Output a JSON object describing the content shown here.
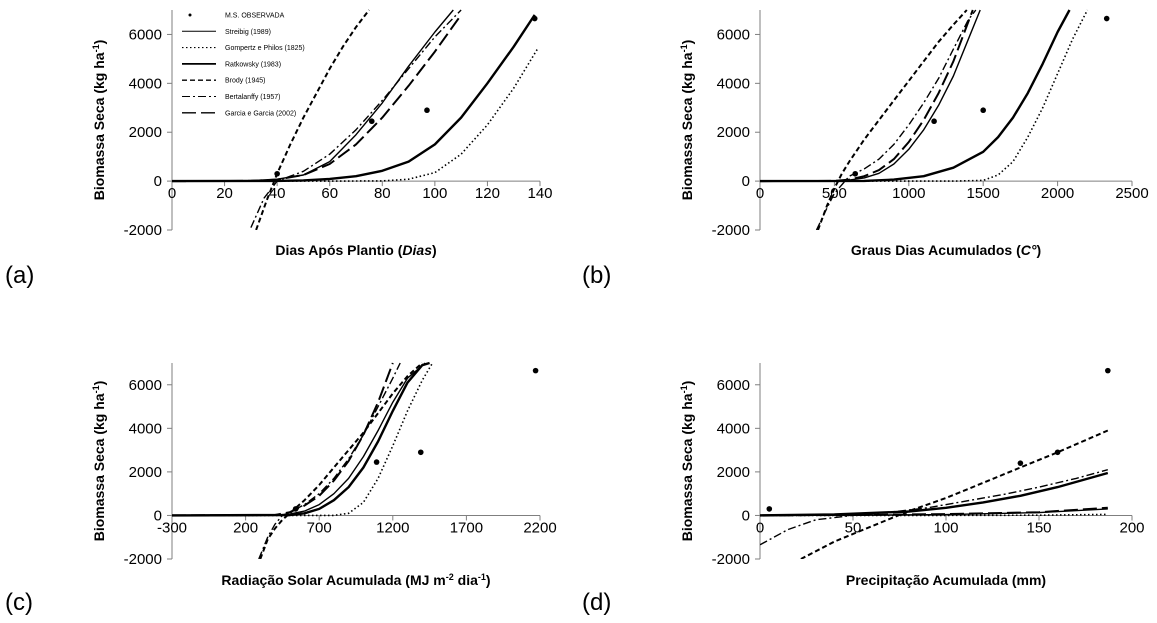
{
  "legend": {
    "position": "top-left inside panel a",
    "entries": [
      {
        "label": "M.S. OBSERVADA",
        "style": "dot"
      },
      {
        "label": "Streibig (1989)",
        "style": "thin-solid"
      },
      {
        "label": "Gompertz e Philos (1825)",
        "style": "dotted"
      },
      {
        "label": "Ratkowsky (1983)",
        "style": "thick-solid"
      },
      {
        "label": "Brody (1945)",
        "style": "short-dash"
      },
      {
        "label": "Bertalanffy (1957)",
        "style": "dash-dot"
      },
      {
        "label": "Garcia e Garcia (2002)",
        "style": "long-dash"
      }
    ]
  },
  "chart_data": [
    {
      "panel_label": "(a)",
      "type": "line",
      "ylabel_main": "Biomassa Seca (kg ha",
      "ylabel_sup": "-1",
      "ylabel_end": ")",
      "xlabel_parts": [
        {
          "text": "Dias Após Plantio (",
          "italic": false
        },
        {
          "text": "Dias",
          "italic": true
        },
        {
          "text": ")",
          "italic": false
        }
      ],
      "xlim": [
        0,
        140
      ],
      "ylim": [
        -2000,
        7000
      ],
      "xticks": [
        0,
        20,
        40,
        60,
        80,
        100,
        120,
        140
      ],
      "yticks": [
        -2000,
        0,
        2000,
        4000,
        6000
      ],
      "grid": false,
      "observed": [
        {
          "x": 40,
          "y": 300
        },
        {
          "x": 76,
          "y": 2450
        },
        {
          "x": 97,
          "y": 2900
        },
        {
          "x": 138,
          "y": 6650
        }
      ],
      "series": [
        {
          "name": "Streibig (1989)",
          "style": "thin-solid",
          "x": [
            0,
            20,
            30,
            40,
            50,
            60,
            70,
            80,
            90,
            100,
            107
          ],
          "y": [
            0,
            5,
            20,
            80,
            250,
            800,
            1900,
            3200,
            4700,
            6100,
            7000
          ]
        },
        {
          "name": "Gompertz e Philos (1825)",
          "style": "dotted",
          "x": [
            0,
            60,
            80,
            90,
            100,
            110,
            120,
            130,
            139
          ],
          "y": [
            0,
            0,
            10,
            80,
            350,
            1100,
            2300,
            3800,
            5400
          ]
        },
        {
          "name": "Ratkowsky (1983)",
          "style": "thick-solid",
          "x": [
            0,
            40,
            50,
            60,
            70,
            80,
            90,
            100,
            110,
            120,
            130,
            138
          ],
          "y": [
            0,
            10,
            30,
            90,
            200,
            420,
            800,
            1500,
            2600,
            4000,
            5500,
            6800
          ]
        },
        {
          "name": "Brody (1945)",
          "style": "short-dash",
          "x": [
            32,
            36,
            40,
            45,
            50,
            55,
            60,
            65,
            70,
            75
          ],
          "y": [
            -2000,
            -800,
            300,
            1500,
            2600,
            3600,
            4600,
            5500,
            6300,
            7000
          ]
        },
        {
          "name": "Bertalanffy (1957)",
          "style": "dash-dot",
          "x": [
            30,
            35,
            40,
            45,
            50,
            60,
            70,
            80,
            90,
            100,
            110
          ],
          "y": [
            -1900,
            -700,
            0,
            200,
            400,
            1100,
            2100,
            3300,
            4600,
            5900,
            7000
          ]
        },
        {
          "name": "Garcia e Garcia (2002)",
          "style": "long-dash",
          "x": [
            0,
            30,
            40,
            50,
            60,
            70,
            80,
            90,
            100,
            110
          ],
          "y": [
            0,
            10,
            60,
            250,
            700,
            1500,
            2600,
            3900,
            5300,
            6800
          ]
        }
      ]
    },
    {
      "panel_label": "(b)",
      "type": "line",
      "ylabel_main": "Biomassa Seca (kg ha",
      "ylabel_sup": "-1",
      "ylabel_end": ")",
      "xlabel_parts": [
        {
          "text": "Graus Dias Acumulados (",
          "italic": false
        },
        {
          "text": "C°",
          "italic": true
        },
        {
          "text": ")",
          "italic": false
        }
      ],
      "xlim": [
        0,
        2500
      ],
      "ylim": [
        -2000,
        7000
      ],
      "xticks": [
        0,
        500,
        1000,
        1500,
        2000,
        2500
      ],
      "yticks": [
        -2000,
        0,
        2000,
        4000,
        6000
      ],
      "grid": false,
      "observed": [
        {
          "x": 640,
          "y": 300
        },
        {
          "x": 1170,
          "y": 2450
        },
        {
          "x": 1500,
          "y": 2900
        },
        {
          "x": 2330,
          "y": 6650
        }
      ],
      "series": [
        {
          "name": "Streibig (1989)",
          "style": "thin-solid",
          "x": [
            0,
            500,
            600,
            700,
            800,
            900,
            1000,
            1100,
            1200,
            1300,
            1400,
            1480
          ],
          "y": [
            0,
            10,
            40,
            130,
            320,
            700,
            1300,
            2100,
            3100,
            4300,
            5800,
            7000
          ]
        },
        {
          "name": "Gompertz e Philos (1825)",
          "style": "dotted",
          "x": [
            0,
            1300,
            1500,
            1600,
            1700,
            1800,
            1900,
            2000,
            2100,
            2200
          ],
          "y": [
            0,
            0,
            30,
            250,
            800,
            1800,
            3000,
            4400,
            5800,
            7000
          ]
        },
        {
          "name": "Ratkowsky (1983)",
          "style": "thick-solid",
          "x": [
            0,
            700,
            900,
            1100,
            1300,
            1500,
            1600,
            1700,
            1800,
            1900,
            2000,
            2080
          ],
          "y": [
            0,
            10,
            60,
            200,
            550,
            1200,
            1800,
            2600,
            3600,
            4800,
            6100,
            7000
          ]
        },
        {
          "name": "Brody (1945)",
          "style": "short-dash",
          "x": [
            390,
            450,
            500,
            550,
            600,
            700,
            800,
            900,
            1000,
            1100,
            1200,
            1300,
            1390
          ],
          "y": [
            -2000,
            -1000,
            -300,
            300,
            800,
            1700,
            2500,
            3300,
            4100,
            4900,
            5700,
            6400,
            7000
          ]
        },
        {
          "name": "Bertalanffy (1957)",
          "style": "dash-dot",
          "x": [
            380,
            450,
            500,
            600,
            700,
            800,
            900,
            1000,
            1100,
            1200,
            1300,
            1400,
            1450
          ],
          "y": [
            -2000,
            -1100,
            -500,
            200,
            500,
            900,
            1500,
            2300,
            3200,
            4200,
            5400,
            6600,
            7000
          ]
        },
        {
          "name": "Garcia e Garcia (2002)",
          "style": "long-dash",
          "x": [
            0,
            500,
            600,
            700,
            800,
            900,
            1000,
            1100,
            1200,
            1300,
            1430
          ],
          "y": [
            0,
            10,
            60,
            200,
            450,
            900,
            1600,
            2500,
            3600,
            4900,
            7000
          ]
        }
      ]
    },
    {
      "panel_label": "(c)",
      "type": "line",
      "ylabel_main": "Biomassa Seca (kg ha",
      "ylabel_sup": "-1",
      "ylabel_end": ")",
      "xlabel_parts": [
        {
          "text": "Radiação Solar Acumulada (MJ m",
          "italic": false
        },
        {
          "text": "-2",
          "italic": false,
          "sup": true
        },
        {
          "text": " dia",
          "italic": false
        },
        {
          "text": "-1",
          "italic": false,
          "sup": true
        },
        {
          "text": ")",
          "italic": false
        }
      ],
      "xlim": [
        -300,
        2200
      ],
      "ylim": [
        -2000,
        7000
      ],
      "xticks": [
        -300,
        200,
        700,
        1200,
        1700,
        2200
      ],
      "xtick_labels": [
        "-300",
        "200",
        "700",
        "1200",
        "1700",
        "2200"
      ],
      "yticks": [
        -2000,
        0,
        2000,
        4000,
        6000
      ],
      "grid": false,
      "observed": [
        {
          "x": 540,
          "y": 300
        },
        {
          "x": 1090,
          "y": 2450
        },
        {
          "x": 1390,
          "y": 2900
        },
        {
          "x": 2170,
          "y": 6650
        }
      ],
      "series": [
        {
          "name": "Streibig (1989)",
          "style": "thin-solid",
          "x": [
            -300,
            400,
            500,
            600,
            700,
            800,
            900,
            1000,
            1100,
            1200,
            1300,
            1420
          ],
          "y": [
            0,
            10,
            60,
            200,
            500,
            1000,
            1700,
            2700,
            3900,
            5200,
            6300,
            7000
          ]
        },
        {
          "name": "Gompertz e Philos (1825)",
          "style": "dotted",
          "x": [
            -300,
            800,
            900,
            1000,
            1100,
            1200,
            1300,
            1400,
            1470
          ],
          "y": [
            0,
            0,
            100,
            600,
            1700,
            3200,
            4800,
            6200,
            7000
          ]
        },
        {
          "name": "Ratkowsky (1983)",
          "style": "thick-solid",
          "x": [
            -300,
            500,
            600,
            700,
            800,
            900,
            1000,
            1100,
            1200,
            1300,
            1400,
            1450
          ],
          "y": [
            0,
            20,
            100,
            300,
            700,
            1300,
            2200,
            3400,
            4800,
            6100,
            6900,
            7000
          ]
        },
        {
          "name": "Brody (1945)",
          "style": "short-dash",
          "x": [
            300,
            350,
            400,
            450,
            500,
            550,
            600,
            700,
            800,
            900,
            1000,
            1100,
            1200,
            1300,
            1400
          ],
          "y": [
            -2000,
            -1100,
            -600,
            -200,
            100,
            400,
            700,
            1400,
            2200,
            3000,
            3800,
            4700,
            5600,
            6400,
            7000
          ]
        },
        {
          "name": "Bertalanffy (1957)",
          "style": "dash-dot",
          "x": [
            290,
            350,
            400,
            450,
            500,
            600,
            700,
            800,
            900,
            1000,
            1100,
            1200,
            1250
          ],
          "y": [
            -2000,
            -1000,
            -400,
            0,
            150,
            500,
            1000,
            1700,
            2600,
            3700,
            5000,
            6300,
            7000
          ]
        },
        {
          "name": "Garcia e Garcia (2002)",
          "style": "long-dash",
          "x": [
            -300,
            400,
            500,
            600,
            700,
            800,
            900,
            1000,
            1100,
            1200
          ],
          "y": [
            0,
            20,
            150,
            450,
            900,
            1600,
            2500,
            3700,
            5200,
            7000
          ]
        }
      ]
    },
    {
      "panel_label": "(d)",
      "type": "line",
      "ylabel_main": "Biomassa Seca (kg ha",
      "ylabel_sup": "-1",
      "ylabel_end": ")",
      "xlabel_parts": [
        {
          "text": "Precipitação Acumulada (mm)",
          "italic": false
        }
      ],
      "xlim": [
        0,
        200
      ],
      "ylim": [
        -2000,
        7000
      ],
      "xticks": [
        0,
        50,
        100,
        150,
        200
      ],
      "yticks": [
        -2000,
        0,
        2000,
        4000,
        6000
      ],
      "grid": false,
      "observed": [
        {
          "x": 5,
          "y": 300
        },
        {
          "x": 140,
          "y": 2400
        },
        {
          "x": 160,
          "y": 2900
        },
        {
          "x": 187,
          "y": 6650
        }
      ],
      "series": [
        {
          "name": "Streibig (1989)",
          "style": "thin-solid",
          "x": [
            0,
            50,
            100,
            150,
            187
          ],
          "y": [
            0,
            10,
            40,
            130,
            300
          ]
        },
        {
          "name": "Gompertz e Philos (1825)",
          "style": "dotted",
          "x": [
            0,
            100,
            150,
            187
          ],
          "y": [
            0,
            0,
            10,
            50
          ]
        },
        {
          "name": "Ratkowsky (1983)",
          "style": "thick-solid",
          "x": [
            0,
            40,
            80,
            100,
            120,
            140,
            160,
            187
          ],
          "y": [
            0,
            50,
            180,
            350,
            600,
            900,
            1300,
            1950
          ]
        },
        {
          "name": "Brody (1945)",
          "style": "short-dash",
          "x": [
            22,
            40,
            60,
            80,
            100,
            120,
            140,
            160,
            187
          ],
          "y": [
            -2000,
            -1200,
            -500,
            200,
            800,
            1500,
            2200,
            2900,
            3900
          ]
        },
        {
          "name": "Bertalanffy (1957)",
          "style": "dash-dot",
          "x": [
            0,
            15,
            30,
            50,
            70,
            90,
            110,
            130,
            150,
            170,
            187
          ],
          "y": [
            -1350,
            -650,
            -200,
            0,
            150,
            350,
            650,
            950,
            1300,
            1700,
            2100
          ]
        },
        {
          "name": "Garcia e Garcia (2002)",
          "style": "long-dash",
          "x": [
            0,
            50,
            100,
            150,
            187
          ],
          "y": [
            0,
            20,
            60,
            150,
            350
          ]
        }
      ]
    }
  ]
}
